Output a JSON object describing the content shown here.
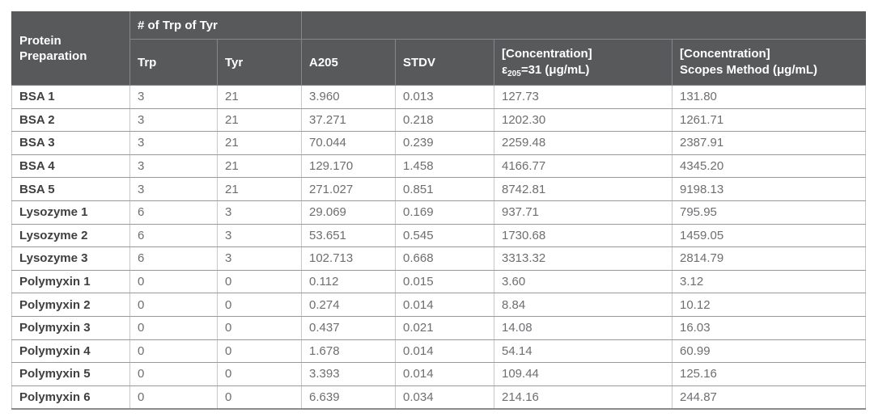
{
  "table": {
    "header": {
      "protein_preparation": "Protein Preparation",
      "trp_tyr_group": "# of Trp of Tyr",
      "trp": "Trp",
      "tyr": "Tyr",
      "a205": "A205",
      "stdv": "STDV",
      "conc_e205_line1": "[Concentration]",
      "conc_e205_epsilon": "ε",
      "conc_e205_subscript": "205",
      "conc_e205_rest": "=31 (μg/mL)",
      "conc_scopes_line1": "[Concentration]",
      "conc_scopes_line2": "Scopes Method (μg/mL)"
    },
    "column_keys": [
      "protein-name",
      "trp",
      "tyr",
      "a205",
      "stdv",
      "conc-e205",
      "conc-scopes"
    ],
    "rows": [
      [
        "BSA 1",
        "3",
        "21",
        "3.960",
        "0.013",
        "127.73",
        "131.80"
      ],
      [
        "BSA 2",
        "3",
        "21",
        "37.271",
        "0.218",
        "1202.30",
        "1261.71"
      ],
      [
        "BSA 3",
        "3",
        "21",
        "70.044",
        "0.239",
        "2259.48",
        "2387.91"
      ],
      [
        "BSA 4",
        "3",
        "21",
        "129.170",
        "1.458",
        "4166.77",
        "4345.20"
      ],
      [
        "BSA 5",
        "3",
        "21",
        "271.027",
        "0.851",
        "8742.81",
        "9198.13"
      ],
      [
        "Lysozyme 1",
        "6",
        "3",
        "29.069",
        "0.169",
        "937.71",
        "795.95"
      ],
      [
        "Lysozyme 2",
        "6",
        "3",
        "53.651",
        "0.545",
        "1730.68",
        "1459.05"
      ],
      [
        "Lysozyme 3",
        "6",
        "3",
        "102.713",
        "0.668",
        "3313.32",
        "2814.79"
      ],
      [
        "Polymyxin 1",
        "0",
        "0",
        "0.112",
        "0.015",
        "3.60",
        "3.12"
      ],
      [
        "Polymyxin 2",
        "0",
        "0",
        "0.274",
        "0.014",
        "8.84",
        "10.12"
      ],
      [
        "Polymyxin 3",
        "0",
        "0",
        "0.437",
        "0.021",
        "14.08",
        "16.03"
      ],
      [
        "Polymyxin 4",
        "0",
        "0",
        "1.678",
        "0.014",
        "54.14",
        "60.99"
      ],
      [
        "Polymyxin 5",
        "0",
        "0",
        "3.393",
        "0.014",
        "109.44",
        "125.16"
      ],
      [
        "Polymyxin 6",
        "0",
        "0",
        "6.639",
        "0.034",
        "214.16",
        "244.87"
      ]
    ]
  },
  "colors": {
    "header_background": "#58595b",
    "header_text": "#ffffff",
    "header_divider": "#85868a",
    "row_label_text": "#3f4041",
    "cell_text": "#6d6e71",
    "row_border": "#98999c",
    "column_border": "#c6c7c9",
    "table_bottom_border": "#8a8b8e",
    "page_background": "#ffffff"
  },
  "chart_data": {
    "type": "table",
    "title": "",
    "columns": [
      "Protein Preparation",
      "Trp",
      "Tyr",
      "A205",
      "STDV",
      "[Concentration] ε205=31 (μg/mL)",
      "[Concentration] Scopes Method (μg/mL)"
    ],
    "rows": [
      [
        "BSA 1",
        3,
        21,
        3.96,
        0.013,
        127.73,
        131.8
      ],
      [
        "BSA 2",
        3,
        21,
        37.271,
        0.218,
        1202.3,
        1261.71
      ],
      [
        "BSA 3",
        3,
        21,
        70.044,
        0.239,
        2259.48,
        2387.91
      ],
      [
        "BSA 4",
        3,
        21,
        129.17,
        1.458,
        4166.77,
        4345.2
      ],
      [
        "BSA 5",
        3,
        21,
        271.027,
        0.851,
        8742.81,
        9198.13
      ],
      [
        "Lysozyme 1",
        6,
        3,
        29.069,
        0.169,
        937.71,
        795.95
      ],
      [
        "Lysozyme 2",
        6,
        3,
        53.651,
        0.545,
        1730.68,
        1459.05
      ],
      [
        "Lysozyme 3",
        6,
        3,
        102.713,
        0.668,
        3313.32,
        2814.79
      ],
      [
        "Polymyxin 1",
        0,
        0,
        0.112,
        0.015,
        3.6,
        3.12
      ],
      [
        "Polymyxin 2",
        0,
        0,
        0.274,
        0.014,
        8.84,
        10.12
      ],
      [
        "Polymyxin 3",
        0,
        0,
        0.437,
        0.021,
        14.08,
        16.03
      ],
      [
        "Polymyxin 4",
        0,
        0,
        1.678,
        0.014,
        54.14,
        60.99
      ],
      [
        "Polymyxin 5",
        0,
        0,
        3.393,
        0.014,
        109.44,
        125.16
      ],
      [
        "Polymyxin 6",
        0,
        0,
        6.639,
        0.034,
        214.16,
        244.87
      ]
    ]
  }
}
